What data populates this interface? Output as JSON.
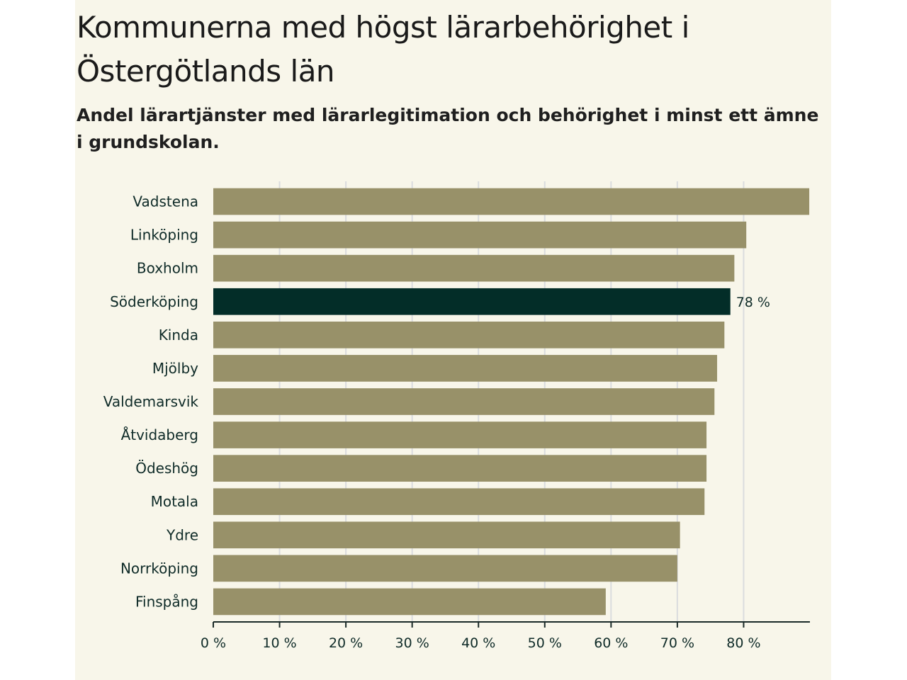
{
  "header": {
    "title": "Kommunerna med högst lärarbehörighet i Östergötlands län",
    "subtitle": "Andel lärartjänster med lärarlegitimation och behörighet i minst ett ämne i grundskolan."
  },
  "colors": {
    "background": "#f8f6ea",
    "bar": "#989169",
    "highlight": "#032d28",
    "label": "#0f2b28",
    "grid": "#dadcde",
    "axis": "#1a2a28"
  },
  "chart_data": {
    "type": "bar",
    "orientation": "horizontal",
    "title": "Kommunerna med högst lärarbehörighet i Östergötlands län",
    "subtitle": "Andel lärartjänster med lärarlegitimation och behörighet i minst ett ämne i grundskolan.",
    "xlabel": "",
    "ylabel": "",
    "xlim": [
      0,
      90
    ],
    "unit": "%",
    "xticks": [
      0,
      10,
      20,
      30,
      40,
      50,
      60,
      70,
      80
    ],
    "xtick_labels": [
      "0 %",
      "10 %",
      "20 %",
      "30 %",
      "40 %",
      "50 %",
      "60 %",
      "70 %",
      "80 %"
    ],
    "categories": [
      "Vadstena",
      "Linköping",
      "Boxholm",
      "Söderköping",
      "Kinda",
      "Mjölby",
      "Valdemarsvik",
      "Åtvidaberg",
      "Ödeshög",
      "Motala",
      "Ydre",
      "Norrköping",
      "Finspång"
    ],
    "values": [
      89.9,
      80.4,
      78.6,
      78.0,
      77.1,
      76.0,
      75.6,
      74.4,
      74.4,
      74.1,
      70.4,
      70.0,
      59.2
    ],
    "highlighted": "Söderköping",
    "annotations": [
      {
        "category": "Söderköping",
        "text": "78 %"
      }
    ],
    "grid": true
  }
}
